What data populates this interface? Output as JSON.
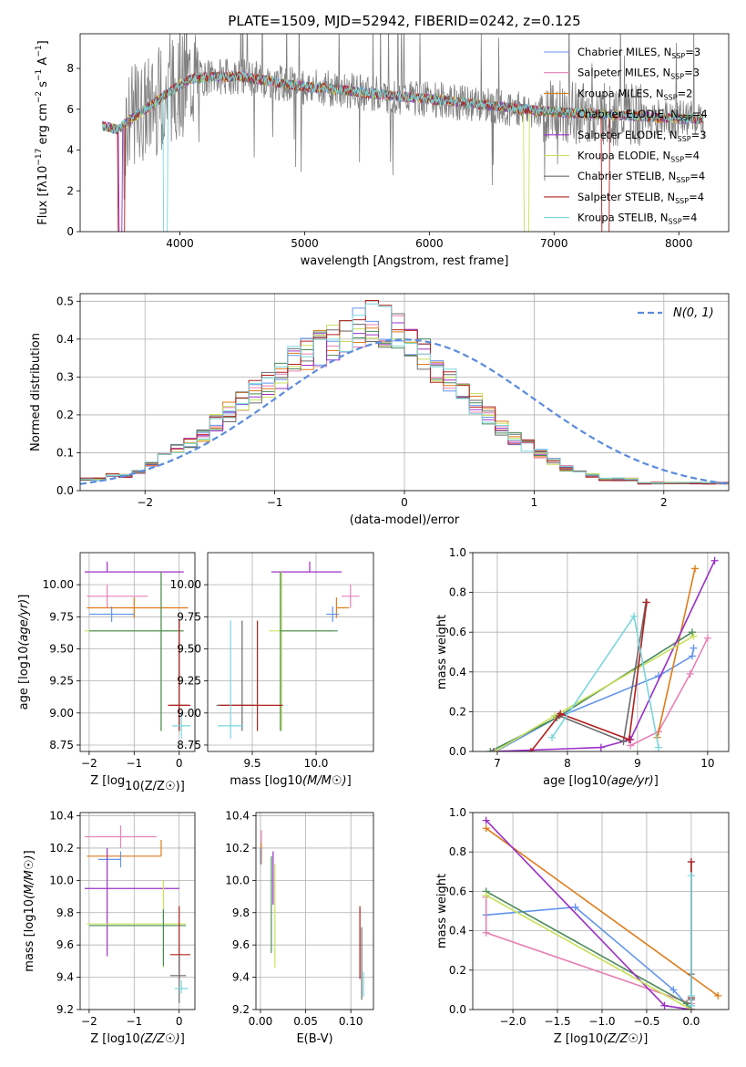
{
  "title": "PLATE=1509, MJD=52942, FIBERID=0242, z=0.125",
  "colors": {
    "Chabrier MILES": "#6495ed",
    "Salpeter MILES": "#e87fb4",
    "Kroupa MILES": "#e07b1a",
    "Chabrier ELODIE": "#4a8a5a",
    "Salpeter ELODIE": "#9b30c8",
    "Kroupa ELODIE": "#c8e05a",
    "Chabrier STELIB": "#6b6b6b",
    "Salpeter STELIB": "#b22020",
    "Kroupa STELIB": "#79d6dc",
    "data": "#808080"
  },
  "chart_data": [
    {
      "id": "spectrum",
      "type": "line",
      "xlabel": "wavelength [Angstrom, rest frame]",
      "ylabel": "Flux [f_λ 10^-17 erg cm^-2 s^-1 A^-1]",
      "xlim": [
        3200,
        8400
      ],
      "ylim": [
        0,
        9.7
      ],
      "xticks": [
        4000,
        5000,
        6000,
        7000,
        8000
      ],
      "yticks": [
        0,
        2,
        4,
        6,
        8
      ],
      "legend": "upper-right",
      "series": [
        {
          "name": "Chabrier MILES",
          "nssp": "3"
        },
        {
          "name": "Salpeter MILES",
          "nssp": "3"
        },
        {
          "name": "Kroupa MILES",
          "nssp": "2"
        },
        {
          "name": "Chabrier ELODIE",
          "nssp": "4"
        },
        {
          "name": "Salpeter ELODIE",
          "nssp": "3"
        },
        {
          "name": "Kroupa ELODIE",
          "nssp": "4"
        },
        {
          "name": "Chabrier STELIB",
          "nssp": "4"
        },
        {
          "name": "Salpeter STELIB",
          "nssp": "4"
        },
        {
          "name": "Kroupa STELIB",
          "nssp": "4"
        }
      ],
      "continuum": {
        "x": [
          3380,
          3500,
          3600,
          3700,
          3800,
          3900,
          4000,
          4100,
          4300,
          4500,
          4700,
          5000,
          5200,
          5500,
          5800,
          6000,
          6300,
          6600,
          6900,
          7200,
          7500,
          7800,
          8200
        ],
        "y": [
          5.2,
          5.0,
          5.5,
          5.9,
          6.3,
          6.8,
          7.2,
          7.5,
          7.6,
          7.6,
          7.4,
          7.1,
          7.0,
          6.8,
          6.6,
          6.5,
          6.3,
          6.1,
          5.9,
          5.8,
          5.7,
          5.6,
          5.5
        ]
      }
    },
    {
      "id": "residuals",
      "type": "histogram",
      "xlabel": "(data-model)/error",
      "ylabel": "Normed distribution",
      "xlim": [
        -2.5,
        2.5
      ],
      "ylim": [
        0,
        0.52
      ],
      "xticks": [
        -2,
        -1,
        0,
        1,
        2
      ],
      "yticks": [
        0.0,
        0.1,
        0.2,
        0.3,
        0.4,
        0.5
      ],
      "legend_label": "N(0,1)",
      "bin_width": 0.1,
      "bins_sample": [
        0.03,
        0.03,
        0.04,
        0.04,
        0.05,
        0.07,
        0.09,
        0.11,
        0.13,
        0.15,
        0.18,
        0.21,
        0.24,
        0.26,
        0.28,
        0.31,
        0.34,
        0.36,
        0.38,
        0.4,
        0.42,
        0.44,
        0.45,
        0.44,
        0.42,
        0.39,
        0.36,
        0.33,
        0.3,
        0.26,
        0.23,
        0.2,
        0.17,
        0.14,
        0.12,
        0.1,
        0.08,
        0.06,
        0.05,
        0.04,
        0.03,
        0.03,
        0.03,
        0.02,
        0.02,
        0.02,
        0.02,
        0.02,
        0.02,
        0.02
      ]
    },
    {
      "id": "age-vs-Z",
      "type": "errorbar",
      "xlabel": "Z [log10(Z/Z☉)]",
      "ylabel": "age [log10(age/yr)]",
      "xlim": [
        -2.2,
        0.35
      ],
      "ylim": [
        8.7,
        10.25
      ],
      "xticks": [
        -2,
        -1,
        0
      ],
      "yticks": [
        8.75,
        9.0,
        9.25,
        9.5,
        9.75,
        10.0
      ],
      "points": [
        {
          "model": "Salpeter ELODIE",
          "x": -1.6,
          "xerr": [
            0.5,
            1.7
          ],
          "y": 10.1,
          "yerr": [
            0.0,
            0.08
          ]
        },
        {
          "model": "Salpeter MILES",
          "x": -1.6,
          "xerr": [
            0.45,
            0.9
          ],
          "y": 9.91,
          "yerr": [
            0.09,
            0.09
          ]
        },
        {
          "model": "Kroupa MILES",
          "x": -1.0,
          "xerr": [
            1.05,
            1.2
          ],
          "y": 9.82,
          "yerr": [
            0.08,
            0.08
          ]
        },
        {
          "model": "Chabrier MILES",
          "x": -1.5,
          "xerr": [
            0.5,
            0.5
          ],
          "y": 9.77,
          "yerr": [
            0.06,
            0.06
          ]
        },
        {
          "model": "Kroupa ELODIE",
          "x": -0.4,
          "xerr": [
            1.7,
            0.5
          ],
          "y": 9.64,
          "yerr": [
            0.78,
            0.46
          ]
        },
        {
          "model": "Chabrier ELODIE",
          "x": -0.4,
          "xerr": [
            1.6,
            0.5
          ],
          "y": 9.64,
          "yerr": [
            0.78,
            0.46
          ]
        },
        {
          "model": "Chabrier STELIB",
          "x": 0.0,
          "xerr": [
            0.2,
            0.2
          ],
          "y": 9.06,
          "yerr": [
            0.2,
            0.66
          ]
        },
        {
          "model": "Salpeter STELIB",
          "x": 0.0,
          "xerr": [
            0.25,
            0.25
          ],
          "y": 9.06,
          "yerr": [
            0.2,
            0.66
          ]
        },
        {
          "model": "Kroupa STELIB",
          "x": 0.05,
          "xerr": [
            0.2,
            0.2
          ],
          "y": 8.9,
          "yerr": [
            0.1,
            0.1
          ]
        }
      ]
    },
    {
      "id": "age-vs-mass",
      "type": "errorbar",
      "xlabel": "mass [log10(M/M☉)]",
      "ylabel": "",
      "xlim": [
        9.15,
        10.45
      ],
      "ylim": [
        8.7,
        10.25
      ],
      "xticks": [
        9.5,
        10.0
      ],
      "yticks": [
        8.75,
        9.0,
        9.25,
        9.5,
        9.75,
        10.0
      ],
      "points": [
        {
          "model": "Salpeter ELODIE",
          "x": 9.95,
          "xerr": [
            0.3,
            0.25
          ],
          "y": 10.1,
          "yerr": [
            0.0,
            0.08
          ]
        },
        {
          "model": "Salpeter MILES",
          "x": 10.27,
          "xerr": [
            0.07,
            0.07
          ],
          "y": 9.91,
          "yerr": [
            0.09,
            0.09
          ]
        },
        {
          "model": "Kroupa MILES",
          "x": 10.16,
          "xerr": [
            0.0,
            0.1
          ],
          "y": 9.82,
          "yerr": [
            0.08,
            0.08
          ]
        },
        {
          "model": "Chabrier MILES",
          "x": 10.13,
          "xerr": [
            0.05,
            0.05
          ],
          "y": 9.77,
          "yerr": [
            0.06,
            0.06
          ]
        },
        {
          "model": "Kroupa ELODIE",
          "x": 9.73,
          "xerr": [
            0.1,
            0.4
          ],
          "y": 9.64,
          "yerr": [
            0.78,
            0.46
          ]
        },
        {
          "model": "Chabrier ELODIE",
          "x": 9.72,
          "xerr": [
            0.0,
            0.45
          ],
          "y": 9.64,
          "yerr": [
            0.78,
            0.46
          ]
        },
        {
          "model": "Chabrier STELIB",
          "x": 9.42,
          "xerr": [
            0.2,
            0.1
          ],
          "y": 9.06,
          "yerr": [
            0.2,
            0.66
          ]
        },
        {
          "model": "Salpeter STELIB",
          "x": 9.54,
          "xerr": [
            0.3,
            0.2
          ],
          "y": 9.06,
          "yerr": [
            0.2,
            0.66
          ]
        },
        {
          "model": "Kroupa STELIB",
          "x": 9.33,
          "xerr": [
            0.1,
            0.1
          ],
          "y": 8.9,
          "yerr": [
            0.1,
            0.82
          ]
        }
      ]
    },
    {
      "id": "weight-vs-age",
      "type": "line",
      "xlabel": "age [log10(age/yr)]",
      "ylabel": "mass weight",
      "xlim": [
        6.65,
        10.3
      ],
      "ylim": [
        0,
        1.0
      ],
      "xticks": [
        7,
        8,
        9,
        10
      ],
      "yticks": [
        0.0,
        0.2,
        0.4,
        0.6,
        0.8,
        1.0
      ],
      "series": [
        {
          "name": "Chabrier MILES",
          "x": [
            6.98,
            7.85,
            9.3,
            9.78,
            9.8
          ],
          "y": [
            0.0,
            0.17,
            0.38,
            0.48,
            0.52
          ]
        },
        {
          "name": "Salpeter MILES",
          "x": [
            8.9,
            9.3,
            9.75,
            10.0
          ],
          "y": [
            0.03,
            0.1,
            0.39,
            0.57
          ]
        },
        {
          "name": "Kroupa MILES",
          "x": [
            9.28,
            9.82
          ],
          "y": [
            0.07,
            0.92
          ]
        },
        {
          "name": "Chabrier ELODIE",
          "x": [
            6.9,
            7.85,
            9.78
          ],
          "y": [
            0.0,
            0.17,
            0.6
          ]
        },
        {
          "name": "Salpeter ELODIE",
          "x": [
            6.95,
            8.48,
            8.9,
            10.1
          ],
          "y": [
            0.0,
            0.02,
            0.06,
            0.96
          ]
        },
        {
          "name": "Kroupa ELODIE",
          "x": [
            6.97,
            7.82,
            9.8
          ],
          "y": [
            0.0,
            0.18,
            0.58
          ]
        },
        {
          "name": "Chabrier STELIB",
          "x": [
            7.88,
            8.8,
            9.12
          ],
          "y": [
            0.18,
            0.05,
            0.75
          ]
        },
        {
          "name": "Salpeter STELIB",
          "x": [
            7.48,
            7.9,
            8.88,
            9.13
          ],
          "y": [
            0.0,
            0.19,
            0.06,
            0.75
          ]
        },
        {
          "name": "Kroupa STELIB",
          "x": [
            7.78,
            8.95,
            9.3
          ],
          "y": [
            0.07,
            0.68,
            0.02
          ]
        }
      ]
    },
    {
      "id": "mass-vs-Z",
      "type": "errorbar",
      "xlabel": "Z [log10(Z/Z☉)]",
      "ylabel": "mass [log10(M/M☉)]",
      "xlim": [
        -2.2,
        0.35
      ],
      "ylim": [
        9.2,
        10.42
      ],
      "xticks": [
        -2,
        -1,
        0
      ],
      "yticks": [
        9.2,
        9.4,
        9.6,
        9.8,
        10.0,
        10.2,
        10.4
      ],
      "points": [
        {
          "model": "Salpeter MILES",
          "x": -1.3,
          "xerr": [
            0.8,
            0.8
          ],
          "y": 10.27,
          "yerr": [
            0.07,
            0.07
          ]
        },
        {
          "model": "Kroupa MILES",
          "x": -0.4,
          "xerr": [
            1.65,
            0.0
          ],
          "y": 10.15,
          "yerr": [
            0.0,
            0.1
          ]
        },
        {
          "model": "Chabrier MILES",
          "x": -1.3,
          "xerr": [
            0.5,
            0.0
          ],
          "y": 10.13,
          "yerr": [
            0.05,
            0.05
          ]
        },
        {
          "model": "Salpeter ELODIE",
          "x": -1.6,
          "xerr": [
            0.5,
            1.6
          ],
          "y": 9.95,
          "yerr": [
            0.42,
            0.25
          ]
        },
        {
          "model": "Kroupa ELODIE",
          "x": -0.35,
          "xerr": [
            1.7,
            0.5
          ],
          "y": 9.73,
          "yerr": [
            0.27,
            0.27
          ]
        },
        {
          "model": "Chabrier ELODIE",
          "x": -0.35,
          "xerr": [
            1.65,
            0.5
          ],
          "y": 9.72,
          "yerr": [
            0.25,
            0.1
          ]
        },
        {
          "model": "Salpeter STELIB",
          "x": 0.0,
          "xerr": [
            0.2,
            0.25
          ],
          "y": 9.54,
          "yerr": [
            0.15,
            0.3
          ]
        },
        {
          "model": "Chabrier STELIB",
          "x": 0.0,
          "xerr": [
            0.2,
            0.15
          ],
          "y": 9.41,
          "yerr": [
            0.17,
            0.13
          ]
        },
        {
          "model": "Kroupa STELIB",
          "x": 0.05,
          "xerr": [
            0.15,
            0.15
          ],
          "y": 9.33,
          "yerr": [
            0.03,
            0.05
          ]
        }
      ]
    },
    {
      "id": "mass-vs-EBV",
      "type": "errorbar",
      "xlabel": "E(B-V)",
      "ylabel": "",
      "xlim": [
        -0.005,
        0.125
      ],
      "ylim": [
        9.2,
        10.42
      ],
      "xticks": [
        0.0,
        0.05,
        0.1
      ],
      "yticks": [
        9.2,
        9.4,
        9.6,
        9.8,
        10.0,
        10.2,
        10.4
      ],
      "points": [
        {
          "model": "Salpeter MILES",
          "x": 0.001,
          "xerr": [
            0,
            0
          ],
          "y": 10.27,
          "yerr": [
            0.07,
            0.04
          ]
        },
        {
          "model": "Kroupa MILES",
          "x": 0.001,
          "xerr": [
            0,
            0
          ],
          "y": 10.15,
          "yerr": [
            0.05,
            0.08
          ]
        },
        {
          "model": "Chabrier MILES",
          "x": 0.0,
          "xerr": [
            0,
            0
          ],
          "y": 10.15,
          "yerr": [
            0.05,
            0.05
          ]
        },
        {
          "model": "Salpeter ELODIE",
          "x": 0.014,
          "xerr": [
            0,
            0
          ],
          "y": 10.0,
          "yerr": [
            0.15,
            0.18
          ]
        },
        {
          "model": "Chabrier ELODIE",
          "x": 0.012,
          "xerr": [
            0,
            0
          ],
          "y": 9.85,
          "yerr": [
            0.3,
            0.3
          ]
        },
        {
          "model": "Kroupa ELODIE",
          "x": 0.016,
          "xerr": [
            0,
            0
          ],
          "y": 9.78,
          "yerr": [
            0.32,
            0.32
          ]
        },
        {
          "model": "Salpeter STELIB",
          "x": 0.11,
          "xerr": [
            0,
            0
          ],
          "y": 9.54,
          "yerr": [
            0.15,
            0.3
          ]
        },
        {
          "model": "Chabrier STELIB",
          "x": 0.112,
          "xerr": [
            0,
            0
          ],
          "y": 9.41,
          "yerr": [
            0.15,
            0.3
          ]
        },
        {
          "model": "Kroupa STELIB",
          "x": 0.114,
          "xerr": [
            0,
            0
          ],
          "y": 9.33,
          "yerr": [
            0.05,
            0.1
          ]
        }
      ]
    },
    {
      "id": "weight-vs-Z",
      "type": "line",
      "xlabel": "Z [log10(Z/Z☉)]",
      "ylabel": "mass weight",
      "xlim": [
        -2.45,
        0.42
      ],
      "ylim": [
        0,
        1.0
      ],
      "xticks": [
        -2.0,
        -1.5,
        -1.0,
        -0.5,
        0.0
      ],
      "yticks": [
        0.0,
        0.2,
        0.4,
        0.6,
        0.8,
        1.0
      ],
      "series": [
        {
          "name": "Chabrier MILES",
          "x": [
            -2.3,
            -1.3,
            -0.2,
            0.0
          ],
          "y": [
            0.48,
            0.52,
            0.1,
            0.0
          ]
        },
        {
          "name": "Salpeter MILES",
          "x": [
            -2.3,
            -2.3,
            0.0
          ],
          "y": [
            0.57,
            0.39,
            0.03
          ]
        },
        {
          "name": "Kroupa MILES",
          "x": [
            -2.3,
            0.3
          ],
          "y": [
            0.92,
            0.07
          ]
        },
        {
          "name": "Chabrier ELODIE",
          "x": [
            -2.3,
            -0.05,
            0.0
          ],
          "y": [
            0.6,
            0.03,
            0.0
          ]
        },
        {
          "name": "Salpeter ELODIE",
          "x": [
            -2.3,
            -0.3,
            0.0
          ],
          "y": [
            0.96,
            0.02,
            0.0
          ]
        },
        {
          "name": "Kroupa ELODIE",
          "x": [
            -2.3,
            0.0
          ],
          "y": [
            0.58,
            0.0
          ]
        },
        {
          "name": "Chabrier STELIB",
          "x": [
            0.0,
            0.0,
            0.0
          ],
          "y": [
            0.75,
            0.18,
            0.05
          ]
        },
        {
          "name": "Salpeter STELIB",
          "x": [
            0.0,
            0.0,
            0.0
          ],
          "y": [
            0.75,
            0.06,
            0.0
          ]
        },
        {
          "name": "Kroupa STELIB",
          "x": [
            0.0,
            0.0,
            0.0
          ],
          "y": [
            0.68,
            0.07,
            0.02
          ]
        }
      ]
    }
  ]
}
